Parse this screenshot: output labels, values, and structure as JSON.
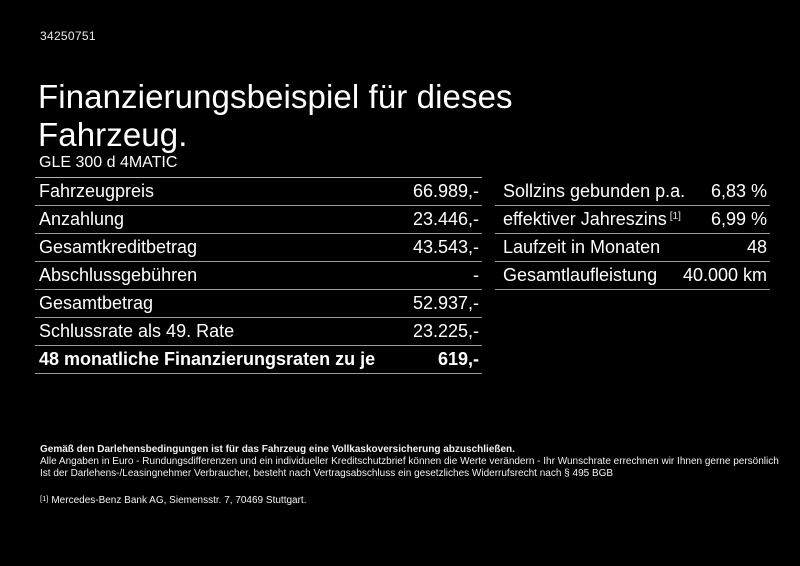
{
  "page": {
    "listing_id": "34250751",
    "title": "Finanzierungsbeispiel für dieses Fahrzeug.",
    "vehicle_name": "GLE 300 d 4MATIC"
  },
  "finance_table": {
    "rows": [
      {
        "label": "Fahrzeugpreis",
        "value": "66.989,-"
      },
      {
        "label": "Anzahlung",
        "value": "23.446,-"
      },
      {
        "label": "Gesamtkreditbetrag",
        "value": "43.543,-"
      },
      {
        "label": "Abschlussgebühren",
        "value": "-"
      },
      {
        "label": "Gesamtbetrag",
        "value": "52.937,-"
      },
      {
        "label": "Schlussrate als 49. Rate",
        "value": "23.225,-"
      },
      {
        "label": "48 monatliche Finanzierungsraten zu je",
        "value": "619,-"
      }
    ]
  },
  "conditions_table": {
    "rows": [
      {
        "label": "Sollzins gebunden p.a.",
        "value": "6,83 %"
      },
      {
        "label": "effektiver Jahreszins",
        "footnote": "[1]",
        "value": "6,99 %"
      },
      {
        "label": "Laufzeit in Monaten",
        "value": "48"
      },
      {
        "label": "Gesamtlaufleistung",
        "value": "40.000 km"
      }
    ]
  },
  "footer": {
    "insurance_note": "Gemäß den Darlehensbedingungen ist für das Fahrzeug eine Vollkaskoversicherung abzuschließen.",
    "note_line1": "Alle Angaben in Euro - Rundungsdifferenzen und ein individueller Kreditschutzbrief können die Werte verändern - Ihr Wunschrate errechnen wir Ihnen gerne persönlich",
    "note_line2": "Ist der Darlehens-/Leasingnehmer Verbraucher, besteht nach Vertragsabschluss ein gesetzliches Widerrufsrecht nach § 495 BGB",
    "footnote_marker": "[1]",
    "footnote_text": "Mercedes-Benz Bank AG, Siemensstr. 7, 70469 Stuttgart."
  },
  "colors": {
    "background": "#000000",
    "text": "#ffffff",
    "divider": "#9c9c9c",
    "divider_strong": "#b3b3b3"
  }
}
